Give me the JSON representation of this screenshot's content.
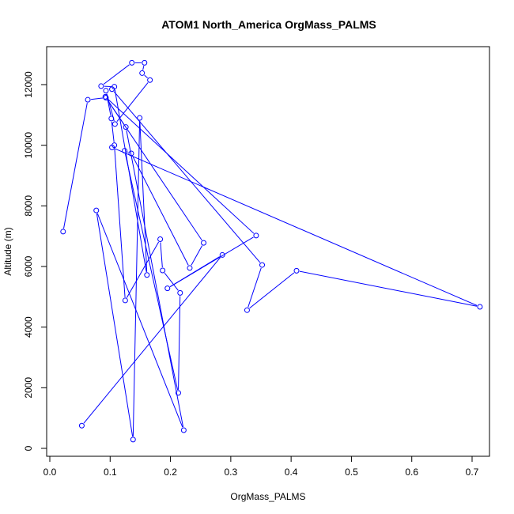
{
  "chart_data": {
    "type": "line",
    "title": "ATOM1 North_America OrgMass_PALMS",
    "xlabel": "OrgMass_PALMS",
    "ylabel": "Altitude (m)",
    "xlim": [
      0.0,
      0.72
    ],
    "ylim": [
      0,
      12800
    ],
    "x_ticks": [
      0.0,
      0.1,
      0.2,
      0.3,
      0.4,
      0.5,
      0.6,
      0.7
    ],
    "x_tick_labels": [
      "0.0",
      "0.1",
      "0.2",
      "0.3",
      "0.4",
      "0.5",
      "0.6",
      "0.7"
    ],
    "y_ticks": [
      0,
      2000,
      4000,
      6000,
      8000,
      10000,
      12000
    ],
    "y_tick_labels": [
      "0",
      "2000",
      "4000",
      "6000",
      "8000",
      "10000",
      "12000"
    ],
    "grid": false,
    "legend": "none",
    "color": "#0000ff",
    "series": [
      {
        "x": [
          0.053,
          0.286,
          0.195,
          0.342,
          0.092,
          0.126,
          0.222,
          0.077,
          0.138,
          0.149,
          0.161,
          0.107,
          0.085,
          0.136,
          0.157,
          0.153,
          0.166,
          0.108,
          0.093,
          0.102,
          0.107,
          0.125,
          0.183,
          0.187,
          0.216,
          0.213,
          0.124,
          0.135,
          0.232,
          0.255,
          0.093,
          0.063,
          0.022
        ],
        "y": [
          750,
          6380,
          5280,
          7020,
          11600,
          10600,
          600,
          7850,
          290,
          10900,
          5720,
          11930,
          11950,
          12720,
          12720,
          12380,
          12150,
          10700,
          11800,
          10880,
          10000,
          4880,
          6900,
          5870,
          5130,
          1830,
          9820,
          9730,
          5950,
          6780,
          11570,
          11500,
          7150
        ]
      },
      {
        "x": [
          0.103,
          0.713,
          0.409,
          0.327,
          0.352,
          0.103
        ],
        "y": [
          9930,
          4670,
          5860,
          4560,
          6050,
          11850
        ]
      }
    ]
  }
}
